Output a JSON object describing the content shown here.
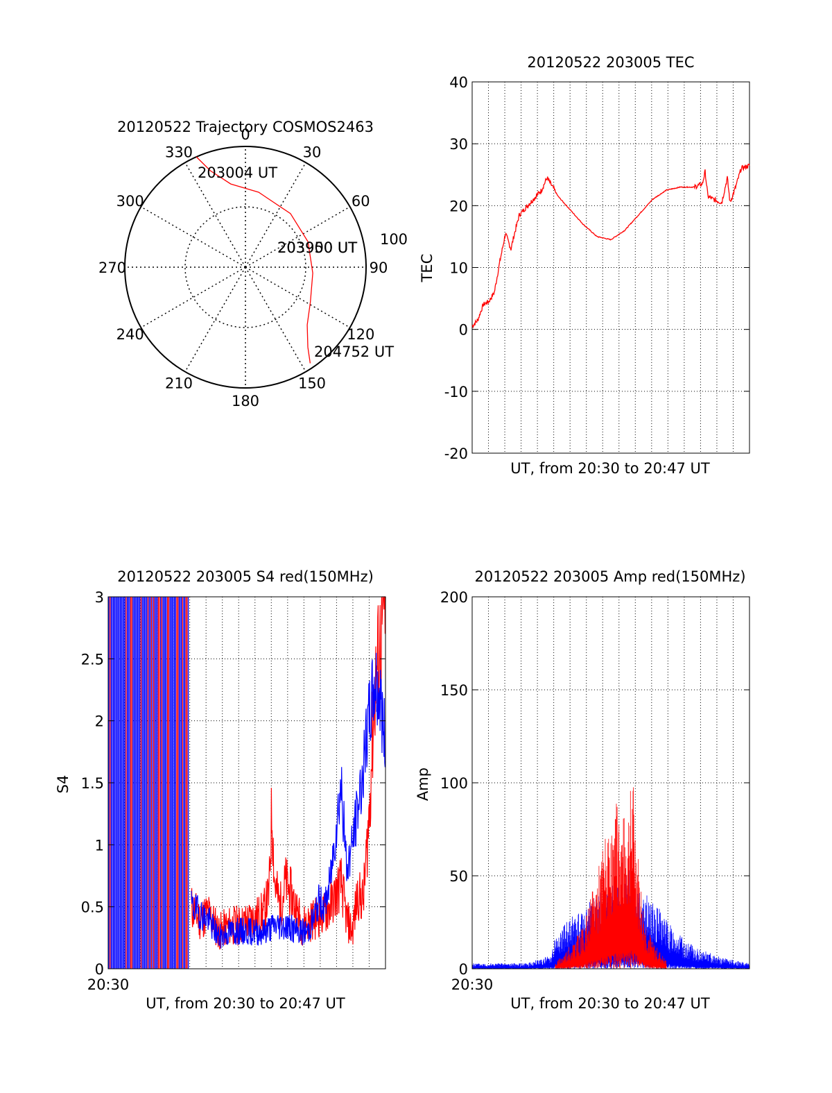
{
  "chart_data": [
    {
      "type": "polar",
      "title": "20120522 Trajectory COSMOS2463",
      "angle_labels": [
        "0",
        "30",
        "60",
        "90",
        "120",
        "150",
        "180",
        "210",
        "240",
        "270",
        "300",
        "330"
      ],
      "radius_label": "100",
      "annotations": [
        "203004 UT",
        "203950 UT",
        "203900 UT",
        "204752 UT"
      ],
      "series": [
        {
          "color": "#ff0000",
          "points": [
            {
              "az": 336,
              "r": 100
            },
            {
              "az": 340,
              "r": 85
            },
            {
              "az": 350,
              "r": 70
            },
            {
              "az": 10,
              "r": 63
            },
            {
              "az": 40,
              "r": 58
            },
            {
              "az": 68,
              "r": 56
            },
            {
              "az": 95,
              "r": 56
            },
            {
              "az": 118,
              "r": 61
            },
            {
              "az": 133,
              "r": 70
            },
            {
              "az": 142,
              "r": 84
            },
            {
              "az": 146,
              "r": 96
            }
          ]
        }
      ]
    },
    {
      "type": "line",
      "title": "20120522 203005 TEC",
      "xlabel": "UT, from 20:30 to 20:47 UT",
      "ylabel": "TEC",
      "ylim": [
        -20,
        40
      ],
      "yticks": [
        "-20",
        "-10",
        "0",
        "10",
        "20",
        "30",
        "40"
      ],
      "grid": true,
      "series": [
        {
          "color": "#ff0000",
          "x": [
            0,
            0.02,
            0.04,
            0.06,
            0.08,
            0.1,
            0.12,
            0.14,
            0.15,
            0.17,
            0.19,
            0.21,
            0.23,
            0.25,
            0.27,
            0.29,
            0.31,
            0.35,
            0.4,
            0.45,
            0.5,
            0.55,
            0.6,
            0.65,
            0.7,
            0.75,
            0.8,
            0.83,
            0.84,
            0.85,
            0.87,
            0.9,
            0.92,
            0.93,
            0.95,
            0.97,
            1.0
          ],
          "y": [
            0.5,
            1.5,
            4,
            4.5,
            6,
            11,
            15.5,
            13,
            15,
            18.5,
            19.5,
            20.5,
            21.5,
            22.5,
            24.5,
            23,
            21.5,
            19.5,
            17,
            15,
            14.5,
            16,
            18.5,
            21,
            22.5,
            23,
            23,
            23.5,
            25.5,
            21.5,
            21,
            20.5,
            24.5,
            20.5,
            23,
            26,
            26.5
          ]
        }
      ]
    },
    {
      "type": "line",
      "title": "20120522 203005 S4 red(150MHz)",
      "xlabel": "UT, from 20:30 to 20:47 UT",
      "ylabel": "S4",
      "ylim": [
        0,
        3
      ],
      "yticks": [
        "0",
        "0.5",
        "1",
        "1.5",
        "2",
        "2.5",
        "3"
      ],
      "xtick_label": "20:30",
      "grid": true,
      "series": [
        {
          "color": "#ff0000",
          "x": [
            0.3,
            0.33,
            0.36,
            0.4,
            0.44,
            0.48,
            0.52,
            0.56,
            0.58,
            0.59,
            0.6,
            0.62,
            0.64,
            0.66,
            0.7,
            0.74,
            0.78,
            0.8,
            0.82,
            0.84,
            0.86,
            0.88,
            0.9,
            0.92,
            0.94,
            0.96,
            0.98,
            1.0
          ],
          "y": [
            0.5,
            0.4,
            0.45,
            0.3,
            0.35,
            0.35,
            0.4,
            0.45,
            0.6,
            1.3,
            0.7,
            0.5,
            0.7,
            0.6,
            0.35,
            0.4,
            0.45,
            0.5,
            0.6,
            0.7,
            0.4,
            0.3,
            0.6,
            0.55,
            1.2,
            2.2,
            2.6,
            3
          ]
        },
        {
          "color": "#0000ff",
          "x": [
            0.3,
            0.33,
            0.36,
            0.4,
            0.44,
            0.48,
            0.52,
            0.56,
            0.6,
            0.64,
            0.68,
            0.72,
            0.74,
            0.76,
            0.78,
            0.8,
            0.82,
            0.84,
            0.86,
            0.88,
            0.9,
            0.92,
            0.94,
            0.96,
            0.98,
            1.0
          ],
          "y": [
            0.5,
            0.45,
            0.4,
            0.25,
            0.3,
            0.3,
            0.3,
            0.3,
            0.35,
            0.35,
            0.3,
            0.3,
            0.4,
            0.55,
            0.5,
            0.7,
            1.1,
            1.5,
            0.8,
            1.0,
            1.3,
            1.6,
            2.0,
            2.3,
            2.2,
            1.8
          ]
        }
      ]
    },
    {
      "type": "line",
      "title": "20120522 203005 Amp red(150MHz)",
      "xlabel": "UT, from 20:30 to 20:47 UT",
      "ylabel": "Amp",
      "ylim": [
        0,
        200
      ],
      "yticks": [
        "0",
        "50",
        "100",
        "150",
        "200"
      ],
      "xtick_label": "20:30",
      "grid": true,
      "series": [
        {
          "color": "#ff0000",
          "x": [
            0.3,
            0.35,
            0.4,
            0.45,
            0.48,
            0.5,
            0.52,
            0.55,
            0.58,
            0.6,
            0.62,
            0.65,
            0.7
          ],
          "y": [
            2,
            8,
            15,
            35,
            50,
            45,
            60,
            55,
            70,
            40,
            20,
            10,
            3
          ]
        },
        {
          "color": "#0000ff",
          "x": [
            0,
            0.1,
            0.2,
            0.28,
            0.3,
            0.35,
            0.4,
            0.45,
            0.5,
            0.55,
            0.58,
            0.6,
            0.65,
            0.7,
            0.75,
            0.8,
            0.85,
            0.9,
            0.95,
            1.0
          ],
          "y": [
            2,
            2,
            2,
            5,
            12,
            18,
            22,
            28,
            30,
            32,
            40,
            30,
            25,
            18,
            12,
            8,
            6,
            4,
            3,
            2
          ]
        }
      ]
    }
  ]
}
